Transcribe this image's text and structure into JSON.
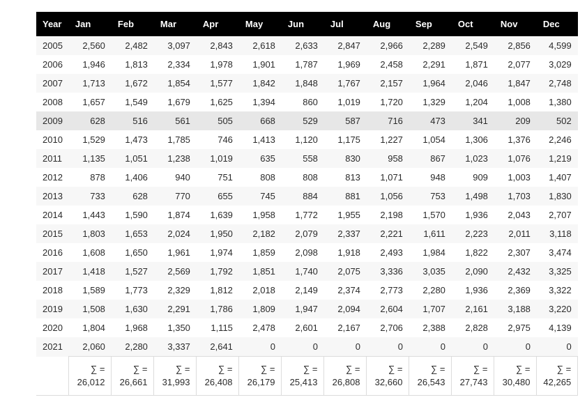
{
  "chart_data": {
    "type": "table",
    "columns": [
      "Year",
      "Jan",
      "Feb",
      "Mar",
      "Apr",
      "May",
      "Jun",
      "Jul",
      "Aug",
      "Sep",
      "Oct",
      "Nov",
      "Dec"
    ],
    "rows": [
      {
        "year": "2005",
        "values": [
          "2,560",
          "2,482",
          "3,097",
          "2,843",
          "2,618",
          "2,633",
          "2,847",
          "2,966",
          "2,289",
          "2,549",
          "2,856",
          "4,599"
        ]
      },
      {
        "year": "2006",
        "values": [
          "1,946",
          "1,813",
          "2,334",
          "1,978",
          "1,901",
          "1,787",
          "1,969",
          "2,458",
          "2,291",
          "1,871",
          "2,077",
          "3,029"
        ]
      },
      {
        "year": "2007",
        "values": [
          "1,713",
          "1,672",
          "1,854",
          "1,577",
          "1,842",
          "1,848",
          "1,767",
          "2,157",
          "1,964",
          "2,046",
          "1,847",
          "2,748"
        ]
      },
      {
        "year": "2008",
        "values": [
          "1,657",
          "1,549",
          "1,679",
          "1,625",
          "1,394",
          "860",
          "1,019",
          "1,720",
          "1,329",
          "1,204",
          "1,008",
          "1,380"
        ]
      },
      {
        "year": "2009",
        "values": [
          "628",
          "516",
          "561",
          "505",
          "668",
          "529",
          "587",
          "716",
          "473",
          "341",
          "209",
          "502"
        ]
      },
      {
        "year": "2010",
        "values": [
          "1,529",
          "1,473",
          "1,785",
          "746",
          "1,413",
          "1,120",
          "1,175",
          "1,227",
          "1,054",
          "1,306",
          "1,376",
          "2,246"
        ]
      },
      {
        "year": "2011",
        "values": [
          "1,135",
          "1,051",
          "1,238",
          "1,019",
          "635",
          "558",
          "830",
          "958",
          "867",
          "1,023",
          "1,076",
          "1,219"
        ]
      },
      {
        "year": "2012",
        "values": [
          "878",
          "1,406",
          "940",
          "751",
          "808",
          "808",
          "813",
          "1,071",
          "948",
          "909",
          "1,003",
          "1,407"
        ]
      },
      {
        "year": "2013",
        "values": [
          "733",
          "628",
          "770",
          "655",
          "745",
          "884",
          "881",
          "1,056",
          "753",
          "1,498",
          "1,703",
          "1,830"
        ]
      },
      {
        "year": "2014",
        "values": [
          "1,443",
          "1,590",
          "1,874",
          "1,639",
          "1,958",
          "1,772",
          "1,955",
          "2,198",
          "1,570",
          "1,936",
          "2,043",
          "2,707"
        ]
      },
      {
        "year": "2015",
        "values": [
          "1,803",
          "1,653",
          "2,024",
          "1,950",
          "2,182",
          "2,079",
          "2,337",
          "2,221",
          "1,611",
          "2,223",
          "2,011",
          "3,118"
        ]
      },
      {
        "year": "2016",
        "values": [
          "1,608",
          "1,650",
          "1,961",
          "1,974",
          "1,859",
          "2,098",
          "1,918",
          "2,493",
          "1,984",
          "1,822",
          "2,307",
          "3,474"
        ]
      },
      {
        "year": "2017",
        "values": [
          "1,418",
          "1,527",
          "2,569",
          "1,792",
          "1,851",
          "1,740",
          "2,075",
          "3,336",
          "3,035",
          "2,090",
          "2,432",
          "3,325"
        ]
      },
      {
        "year": "2018",
        "values": [
          "1,589",
          "1,773",
          "2,329",
          "1,812",
          "2,018",
          "2,149",
          "2,374",
          "2,773",
          "2,280",
          "1,936",
          "2,369",
          "3,322"
        ]
      },
      {
        "year": "2019",
        "values": [
          "1,508",
          "1,630",
          "2,291",
          "1,786",
          "1,809",
          "1,947",
          "2,094",
          "2,604",
          "1,707",
          "2,161",
          "3,188",
          "3,220"
        ]
      },
      {
        "year": "2020",
        "values": [
          "1,804",
          "1,968",
          "1,350",
          "1,115",
          "2,478",
          "2,601",
          "2,167",
          "2,706",
          "2,388",
          "2,828",
          "2,975",
          "4,139"
        ]
      },
      {
        "year": "2021",
        "values": [
          "2,060",
          "2,280",
          "3,337",
          "2,641",
          "0",
          "0",
          "0",
          "0",
          "0",
          "0",
          "0",
          "0"
        ]
      }
    ],
    "highlighted_year": "2009",
    "totals": {
      "label": "∑ =",
      "values": [
        "26,012",
        "26,661",
        "31,993",
        "26,408",
        "26,179",
        "25,413",
        "26,808",
        "32,660",
        "26,543",
        "27,743",
        "30,480",
        "42,265"
      ]
    }
  },
  "colors": {
    "header_bg": "#000000",
    "header_text": "#ffffff",
    "row_stripe": "#f7f7f7",
    "row_highlight": "#e7e7e7",
    "border": "#dcdcdc",
    "text": "#2b2b2b"
  }
}
